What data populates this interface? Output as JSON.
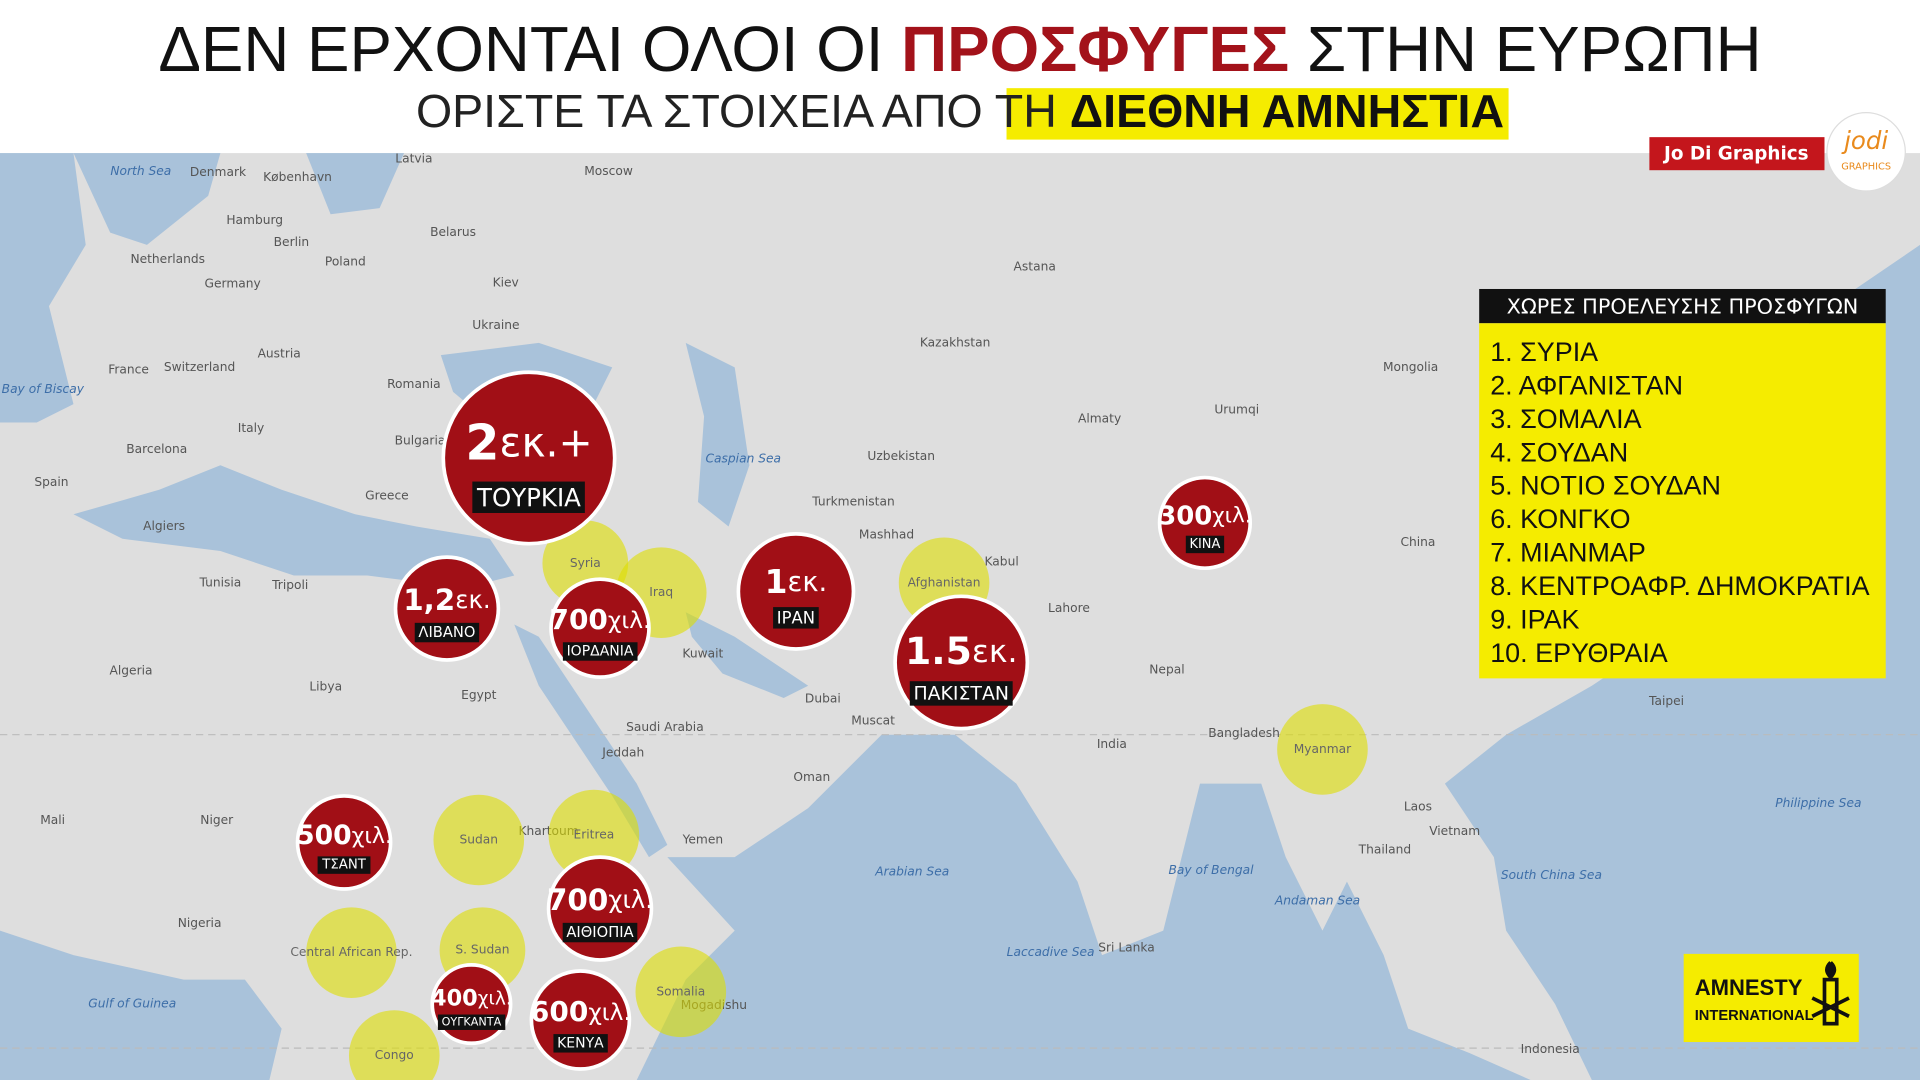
{
  "header": {
    "title": [
      "ΔΕΝ ΕΡΧΟΝΤΑΙ ΟΛΟΙ ΟΙ ",
      "ΠΡΟΣΦΥΓΕΣ",
      " ΣΤΗΝ ΕΥΡΩΠΗ"
    ],
    "subtitle": [
      "ΟΡΙΣΤΕ ΤΑ ΣΤΟΙΧΕΙΑ ΑΠΟ ΤΗ ",
      "ΔΙΕΘΝΗ ΑΜΝΗΣΤΙΑ"
    ],
    "brand": "Jo Di Graphics",
    "logo": [
      "jodi",
      "GRAPHICS"
    ]
  },
  "bubbles": [
    {
      "value": "2",
      "unit": "εκ.+",
      "country": "ΤΟΥΡΚΙΑ"
    },
    {
      "value": "1,2",
      "unit": "εκ.",
      "country": "ΛΙΒΑΝΟ"
    },
    {
      "value": "700",
      "unit": "χιλ.",
      "country": "ΙΟΡΔΑΝΙΑ"
    },
    {
      "value": "1",
      "unit": "εκ.",
      "country": "ΙΡΑΝ"
    },
    {
      "value": "1.5",
      "unit": "εκ.",
      "country": "ΠΑΚΙΣΤΑΝ"
    },
    {
      "value": "300",
      "unit": "χιλ.",
      "country": "ΚΙΝΑ"
    },
    {
      "value": "500",
      "unit": "χιλ.",
      "country": "ΤΣΑΝΤ"
    },
    {
      "value": "700",
      "unit": "χιλ.",
      "country": "ΑΙΘΙΟΠΙΑ"
    },
    {
      "value": "400",
      "unit": "χιλ.",
      "country": "ΟΥΓΚΑΝΤΑ"
    },
    {
      "value": "600",
      "unit": "χιλ.",
      "country": "ΚΕΝΥΑ"
    }
  ],
  "origin_labels": [
    "Syria",
    "Iraq",
    "Afghanistan",
    "Myanmar",
    "Sudan",
    "Eritrea",
    "S. Sudan",
    "Central African Rep.",
    "Somalia",
    "Congo"
  ],
  "sea_labels": [
    "North Sea",
    "Bay of Biscay",
    "Caspian Sea",
    "Arabian Sea",
    "Bay of Bengal",
    "South China Sea",
    "Philippine Sea",
    "Gulf of Guinea",
    "Andaman Sea",
    "Laccadive Sea"
  ],
  "land_labels": [
    "Denmark",
    "København",
    "Latvia",
    "Moscow",
    "Hamburg",
    "Berlin",
    "Poland",
    "Belarus",
    "Netherlands",
    "Germany",
    "Kiev",
    "Ukraine",
    "France",
    "Switzerland",
    "Austria",
    "Romania",
    "Spain",
    "Italy",
    "Barcelona",
    "Greece",
    "Bulgaria",
    "Algiers",
    "Tunisia",
    "Tripoli",
    "Algeria",
    "Libya",
    "Egypt",
    "Saudi Arabia",
    "Kazakhstan",
    "Uzbekistan",
    "Turkmenistan",
    "Mashhad",
    "Kabul",
    "Lahore",
    "Muscat",
    "Oman",
    "Yemen",
    "India",
    "Nepal",
    "Bangladesh",
    "China",
    "Mongolia",
    "Urumqi",
    "Laos",
    "Vietnam",
    "Thailand",
    "Taipei",
    "Indonesia",
    "Sri Lanka",
    "Nigeria",
    "Niger",
    "Mali",
    "Khartoum",
    "Mogadishu",
    "Jeddah",
    "Kuwait",
    "Dubai",
    "Astana",
    "Almaty"
  ],
  "legend": {
    "title": "ΧΩΡΕΣ ΠΡΟΕΛΕΥΣΗΣ ΠΡΟΣΦΥΓΩΝ",
    "items": [
      "1. ΣΥΡΙΑ",
      "2. ΑΦΓΑΝΙΣΤΑΝ",
      "3. ΣΟΜΑΛΙΑ",
      "4. ΣΟΥΔΑΝ",
      "5. ΝΟΤΙΟ ΣΟΥΔΑΝ",
      "6. ΚΟΝΓΚΟ",
      "7. ΜΙΑΝΜΑΡ",
      "8. ΚΕΝΤΡΟΑΦΡ. ΔΗΜΟΚΡΑΤΙΑ",
      "9. ΙΡΑΚ",
      "10. ΕΡΥΘΡΑΙΑ"
    ]
  },
  "amnesty": [
    "AMNESTY",
    "INTERNATIONAL"
  ]
}
